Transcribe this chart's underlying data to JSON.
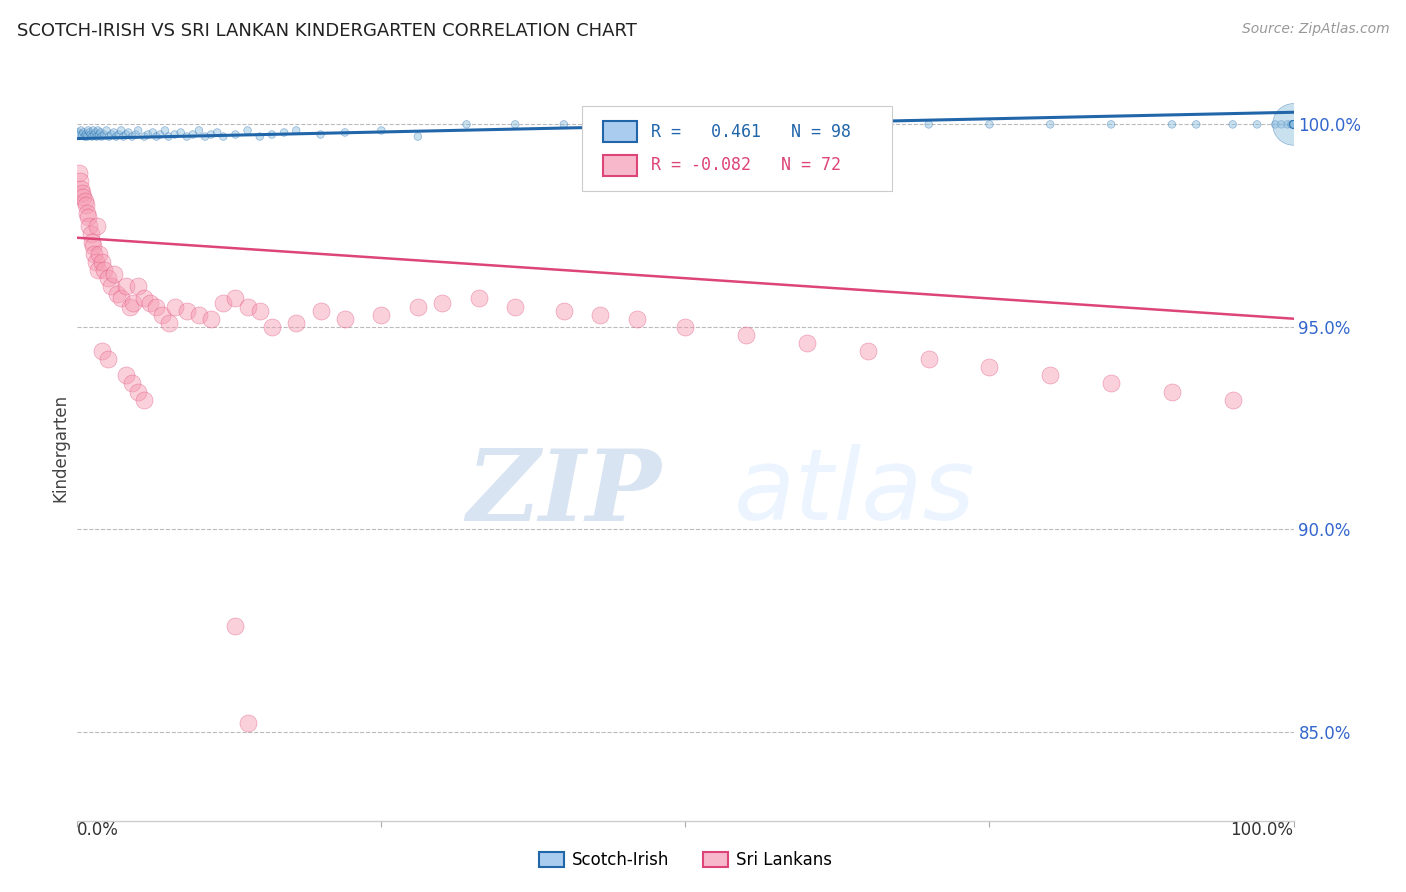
{
  "title": "SCOTCH-IRISH VS SRI LANKAN KINDERGARTEN CORRELATION CHART",
  "source": "Source: ZipAtlas.com",
  "ylabel": "Kindergarten",
  "legend_blue_label": "Scotch-Irish",
  "legend_pink_label": "Sri Lankans",
  "xlim": [
    0.0,
    1.0
  ],
  "ylim": [
    0.828,
    1.012
  ],
  "yticks": [
    0.85,
    0.9,
    0.95,
    1.0
  ],
  "ytick_labels": [
    "85.0%",
    "90.0%",
    "95.0%",
    "100.0%"
  ],
  "blue_color": "#88bbdd",
  "pink_color": "#f599b0",
  "blue_line_color": "#2266aa",
  "pink_line_color": "#dd4477",
  "watermark_zip": "ZIP",
  "watermark_atlas": "atlas",
  "background_color": "#ffffff",
  "grid_color": "#bbbbbb",
  "blue_trend": [
    0.9965,
    1.003
  ],
  "pink_trend": [
    0.972,
    0.952
  ],
  "blue_scatter_x": [
    0.001,
    0.002,
    0.003,
    0.004,
    0.005,
    0.006,
    0.007,
    0.008,
    0.009,
    0.01,
    0.011,
    0.012,
    0.013,
    0.014,
    0.015,
    0.016,
    0.017,
    0.018,
    0.019,
    0.02,
    0.022,
    0.024,
    0.026,
    0.028,
    0.03,
    0.032,
    0.034,
    0.036,
    0.038,
    0.04,
    0.042,
    0.045,
    0.048,
    0.05,
    0.055,
    0.058,
    0.062,
    0.065,
    0.068,
    0.072,
    0.075,
    0.08,
    0.085,
    0.09,
    0.095,
    0.1,
    0.105,
    0.11,
    0.115,
    0.12,
    0.13,
    0.14,
    0.15,
    0.16,
    0.17,
    0.18,
    0.2,
    0.22,
    0.25,
    0.28,
    0.32,
    0.36,
    0.4,
    0.45,
    0.5,
    0.55,
    0.6,
    0.65,
    0.7,
    0.75,
    0.8,
    0.85,
    0.9,
    0.92,
    0.95,
    0.97,
    0.985,
    0.99,
    0.995,
    0.998,
    0.999,
    1.0,
    1.0,
    1.0,
    1.0,
    1.0,
    1.0,
    1.0,
    1.0,
    1.0,
    1.0,
    1.0,
    1.0,
    1.0,
    1.0,
    1.0,
    1.0,
    1.0
  ],
  "blue_scatter_y": [
    0.998,
    0.9975,
    0.9985,
    0.9975,
    0.998,
    0.997,
    0.9975,
    0.997,
    0.9985,
    0.998,
    0.9975,
    0.997,
    0.9985,
    0.9975,
    0.998,
    0.997,
    0.9985,
    0.9975,
    0.998,
    0.997,
    0.9975,
    0.9985,
    0.997,
    0.9975,
    0.998,
    0.997,
    0.9975,
    0.9985,
    0.997,
    0.9975,
    0.998,
    0.997,
    0.9975,
    0.9985,
    0.997,
    0.9975,
    0.998,
    0.997,
    0.9975,
    0.9985,
    0.997,
    0.9975,
    0.998,
    0.997,
    0.9975,
    0.9985,
    0.997,
    0.9975,
    0.998,
    0.997,
    0.9975,
    0.9985,
    0.997,
    0.9975,
    0.998,
    0.9985,
    0.9975,
    0.998,
    0.9985,
    0.997,
    1.0,
    1.0,
    1.0,
    1.0,
    1.0,
    1.0,
    1.0,
    1.0,
    1.0,
    1.0,
    1.0,
    1.0,
    1.0,
    1.0,
    1.0,
    1.0,
    1.0,
    1.0,
    1.0,
    1.0,
    1.0,
    1.0,
    1.0,
    1.0,
    1.0,
    1.0,
    1.0,
    1.0,
    1.0,
    1.0,
    1.0,
    1.0,
    1.0,
    1.0,
    1.0,
    1.0,
    1.0,
    1.0
  ],
  "blue_scatter_sizes": [
    30,
    30,
    30,
    30,
    30,
    30,
    30,
    30,
    30,
    30,
    30,
    30,
    30,
    30,
    30,
    30,
    30,
    30,
    30,
    30,
    30,
    30,
    30,
    30,
    30,
    30,
    30,
    30,
    30,
    30,
    30,
    30,
    30,
    30,
    30,
    30,
    30,
    30,
    30,
    30,
    30,
    30,
    30,
    30,
    30,
    30,
    30,
    30,
    30,
    30,
    30,
    30,
    30,
    30,
    30,
    30,
    30,
    30,
    30,
    30,
    30,
    30,
    30,
    30,
    30,
    30,
    30,
    30,
    30,
    30,
    30,
    30,
    30,
    30,
    30,
    30,
    30,
    30,
    30,
    30,
    30,
    30,
    30,
    30,
    30,
    30,
    30,
    900,
    30,
    30,
    30,
    30,
    30,
    30,
    30,
    30,
    30,
    30
  ],
  "pink_scatter_x": [
    0.001,
    0.002,
    0.003,
    0.004,
    0.005,
    0.006,
    0.007,
    0.008,
    0.009,
    0.01,
    0.011,
    0.012,
    0.013,
    0.014,
    0.015,
    0.016,
    0.017,
    0.018,
    0.02,
    0.022,
    0.025,
    0.028,
    0.03,
    0.033,
    0.036,
    0.04,
    0.043,
    0.046,
    0.05,
    0.055,
    0.06,
    0.065,
    0.07,
    0.075,
    0.08,
    0.09,
    0.1,
    0.11,
    0.12,
    0.13,
    0.14,
    0.15,
    0.16,
    0.18,
    0.2,
    0.22,
    0.25,
    0.28,
    0.3,
    0.33,
    0.36,
    0.4,
    0.43,
    0.46,
    0.5,
    0.55,
    0.6,
    0.65,
    0.7,
    0.75,
    0.8,
    0.85,
    0.9,
    0.95,
    0.02,
    0.025,
    0.04,
    0.045,
    0.05,
    0.055,
    0.13,
    0.14
  ],
  "pink_scatter_y": [
    0.988,
    0.986,
    0.984,
    0.983,
    0.982,
    0.981,
    0.98,
    0.978,
    0.977,
    0.975,
    0.973,
    0.971,
    0.97,
    0.968,
    0.966,
    0.975,
    0.964,
    0.968,
    0.966,
    0.964,
    0.962,
    0.96,
    0.963,
    0.958,
    0.957,
    0.96,
    0.955,
    0.956,
    0.96,
    0.957,
    0.956,
    0.955,
    0.953,
    0.951,
    0.955,
    0.954,
    0.953,
    0.952,
    0.956,
    0.957,
    0.955,
    0.954,
    0.95,
    0.951,
    0.954,
    0.952,
    0.953,
    0.955,
    0.956,
    0.957,
    0.955,
    0.954,
    0.953,
    0.952,
    0.95,
    0.948,
    0.946,
    0.944,
    0.942,
    0.94,
    0.938,
    0.936,
    0.934,
    0.932,
    0.944,
    0.942,
    0.938,
    0.936,
    0.934,
    0.932,
    0.876,
    0.852
  ]
}
